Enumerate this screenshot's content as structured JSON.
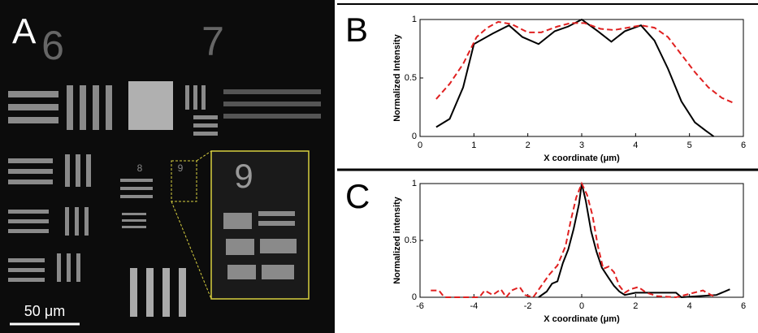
{
  "image_panel": {
    "label": "A",
    "digits": [
      "6",
      "7",
      "8",
      "9"
    ],
    "scale_bar": "50 μm"
  },
  "chart_data": [
    {
      "type": "line",
      "panel_label": "B",
      "xlabel": "X coordinate (μm)",
      "ylabel": "Normalized Intensity",
      "xlim": [
        0,
        6
      ],
      "xticks": [
        0,
        1,
        2,
        3,
        4,
        5,
        6
      ],
      "ylim": [
        0,
        1
      ],
      "yticks": [
        0,
        0.5,
        1
      ],
      "series": [
        {
          "color": "#000000",
          "dash": false,
          "x": [
            0.3,
            0.55,
            0.8,
            1.0,
            1.35,
            1.65,
            1.9,
            2.2,
            2.5,
            2.75,
            3.0,
            3.3,
            3.55,
            3.8,
            4.1,
            4.35,
            4.6,
            4.85,
            5.1,
            5.3,
            5.45
          ],
          "values": [
            0.08,
            0.15,
            0.42,
            0.79,
            0.88,
            0.95,
            0.85,
            0.79,
            0.9,
            0.94,
            1.0,
            0.9,
            0.81,
            0.9,
            0.95,
            0.82,
            0.58,
            0.3,
            0.12,
            0.05,
            0.0
          ]
        },
        {
          "color": "#e02020",
          "dash": true,
          "x": [
            0.3,
            0.55,
            0.8,
            1.05,
            1.25,
            1.45,
            1.7,
            2.0,
            2.25,
            2.55,
            2.8,
            3.05,
            3.35,
            3.6,
            3.85,
            4.1,
            4.35,
            4.6,
            4.85,
            5.1,
            5.35,
            5.6,
            5.85
          ],
          "values": [
            0.32,
            0.45,
            0.62,
            0.85,
            0.93,
            0.98,
            0.96,
            0.89,
            0.89,
            0.94,
            0.97,
            0.97,
            0.92,
            0.91,
            0.93,
            0.95,
            0.93,
            0.85,
            0.7,
            0.55,
            0.42,
            0.33,
            0.28
          ]
        }
      ]
    },
    {
      "type": "line",
      "panel_label": "C",
      "xlabel": "X coordinate (μm)",
      "ylabel": "Normalized intensity",
      "xlim": [
        -6,
        6
      ],
      "xticks": [
        -6,
        -4,
        -2,
        0,
        2,
        4,
        6
      ],
      "ylim": [
        0,
        1
      ],
      "yticks": [
        0,
        0.5,
        1
      ],
      "series": [
        {
          "color": "#000000",
          "dash": false,
          "x": [
            -1.6,
            -1.3,
            -1.1,
            -0.9,
            -0.7,
            -0.5,
            -0.3,
            -0.1,
            0,
            0.15,
            0.35,
            0.55,
            0.75,
            1.0,
            1.2,
            1.4,
            1.6,
            2.0,
            3.5,
            3.7,
            5.0,
            5.5
          ],
          "values": [
            0,
            0.05,
            0.12,
            0.14,
            0.3,
            0.42,
            0.6,
            0.82,
            1,
            0.85,
            0.58,
            0.4,
            0.26,
            0.17,
            0.1,
            0.05,
            0.02,
            0.04,
            0.04,
            0,
            0.02,
            0.07
          ]
        },
        {
          "color": "#e02020",
          "dash": true,
          "x": [
            -5.6,
            -5.3,
            -5.1,
            -3.8,
            -3.6,
            -3.3,
            -3.0,
            -2.8,
            -2.6,
            -2.3,
            -2.1,
            -1.8,
            -1.5,
            -1.2,
            -0.9,
            -0.6,
            -0.4,
            -0.2,
            0,
            0.2,
            0.4,
            0.6,
            0.8,
            1.0,
            1.2,
            1.4,
            1.6,
            1.8,
            2.1,
            2.4,
            2.8,
            3.5,
            4.5,
            4.8,
            5.0
          ],
          "values": [
            0.06,
            0.06,
            0,
            0,
            0.06,
            0.02,
            0.07,
            0,
            0.06,
            0.09,
            0.02,
            0,
            0.1,
            0.2,
            0.28,
            0.45,
            0.68,
            0.88,
            1,
            0.9,
            0.72,
            0.45,
            0.25,
            0.27,
            0.22,
            0.1,
            0.04,
            0.07,
            0.09,
            0.04,
            0.01,
            0,
            0.06,
            0.02,
            0
          ]
        }
      ]
    }
  ]
}
